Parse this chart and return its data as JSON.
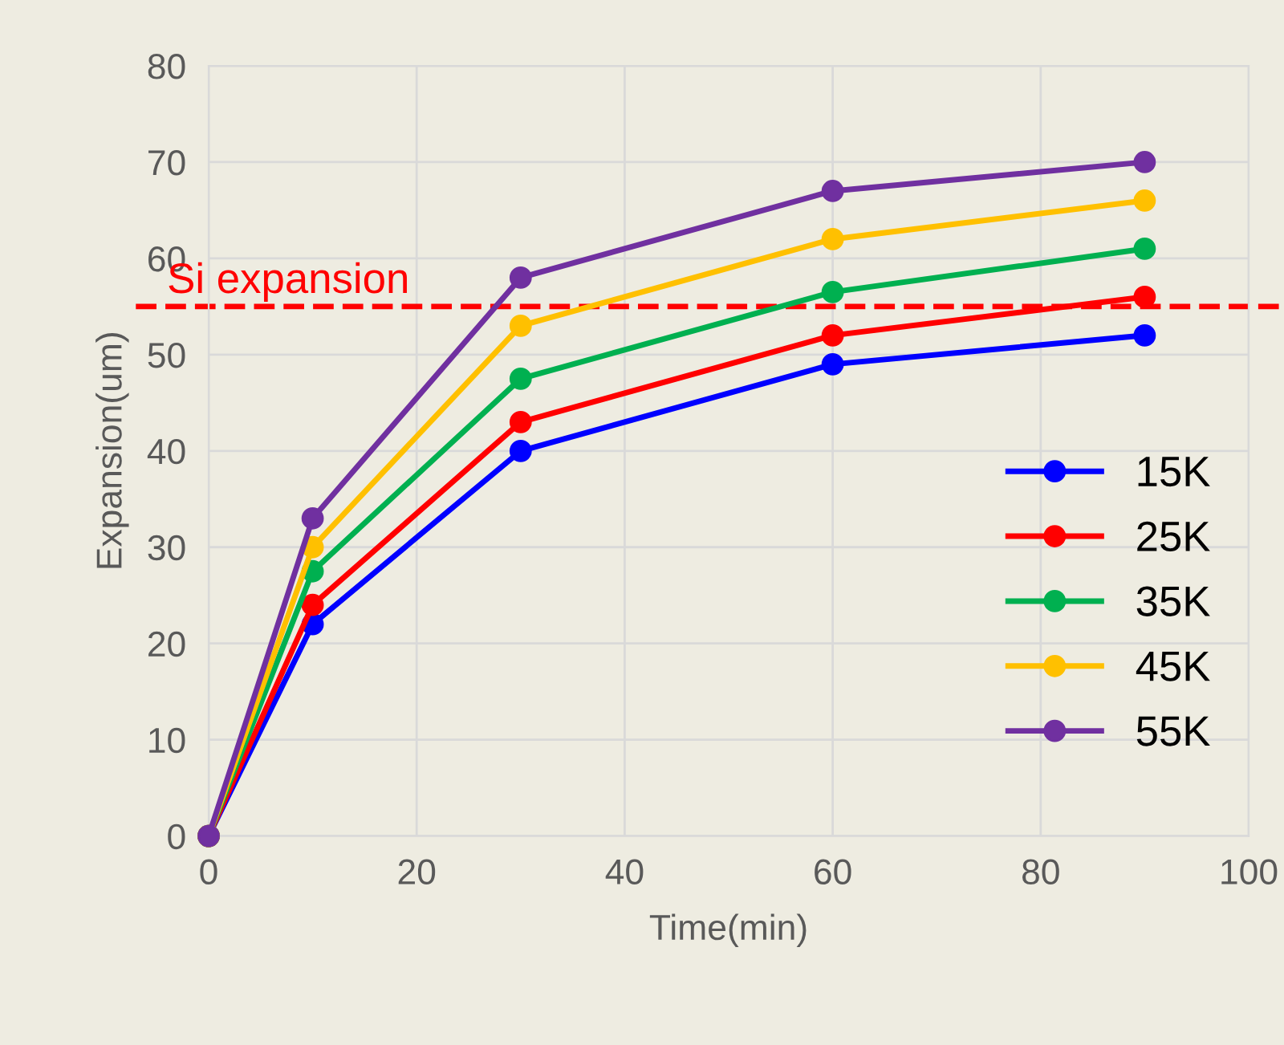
{
  "chart_data": {
    "type": "line",
    "xlabel": "Time(min)",
    "ylabel": "Expansion(um)",
    "x": [
      0,
      10,
      30,
      60,
      90
    ],
    "series": [
      {
        "name": "15K",
        "color": "#0000ff",
        "values": [
          0,
          22,
          40,
          49,
          52
        ]
      },
      {
        "name": "25K",
        "color": "#ff0000",
        "values": [
          0,
          24,
          43,
          52,
          56
        ]
      },
      {
        "name": "35K",
        "color": "#00b050",
        "values": [
          0,
          27.5,
          47.5,
          56.5,
          61
        ]
      },
      {
        "name": "45K",
        "color": "#ffc000",
        "values": [
          0,
          30,
          53,
          62,
          66
        ]
      },
      {
        "name": "55K",
        "color": "#7030a0",
        "values": [
          0,
          33,
          58,
          67,
          70
        ]
      }
    ],
    "xlim": [
      0,
      100
    ],
    "xticks": [
      0,
      20,
      40,
      60,
      80,
      100
    ],
    "ylim": [
      0,
      80
    ],
    "yticks": [
      0,
      10,
      20,
      30,
      40,
      50,
      60,
      70,
      80
    ],
    "ref_lines": [
      {
        "axis": "y",
        "value": 55,
        "label": "Si expansion",
        "color": "#ff0000",
        "line_style": "dashed"
      }
    ],
    "grid": true,
    "legend": "right",
    "marker": "circle",
    "line_style": "solid"
  }
}
